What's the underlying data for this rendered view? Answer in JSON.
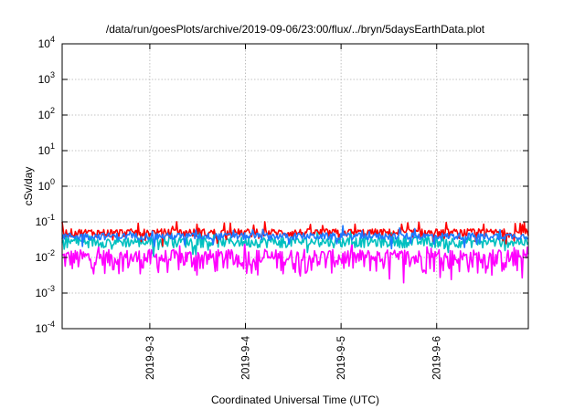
{
  "chart_data": {
    "type": "line",
    "title": "/data/run/goesPlots/archive/2019-09-06/23:00/flux/../bryn/5daysEarthData.plot",
    "xlabel": "Coordinated Universal Time (UTC)",
    "ylabel": "cSv/day",
    "yscale": "log",
    "ylim": [
      0.0001,
      10000
    ],
    "y_ticks": [
      {
        "exp": "-4"
      },
      {
        "exp": "-3"
      },
      {
        "exp": "-2"
      },
      {
        "exp": "-1"
      },
      {
        "exp": "0"
      },
      {
        "exp": "1"
      },
      {
        "exp": "2"
      },
      {
        "exp": "3"
      },
      {
        "exp": "4"
      }
    ],
    "y_tick_base": "10",
    "xlim": [
      "2019-09-02 02:00",
      "2019-09-06 23:00"
    ],
    "x_ticks": [
      "2019-9-3",
      "2019-9-4",
      "2019-9-5",
      "2019-9-6"
    ],
    "grid": true,
    "legend": "none",
    "series": [
      {
        "color": "#ff00ff",
        "level": 0.01,
        "spread": 0.3
      },
      {
        "color": "#00c0c0",
        "level": 0.028,
        "spread": 0.15
      },
      {
        "color": "#ff0000",
        "level": 0.05,
        "spread": 0.12
      },
      {
        "color": "#1e78ff",
        "level": 0.04,
        "spread": 0.1
      }
    ]
  }
}
